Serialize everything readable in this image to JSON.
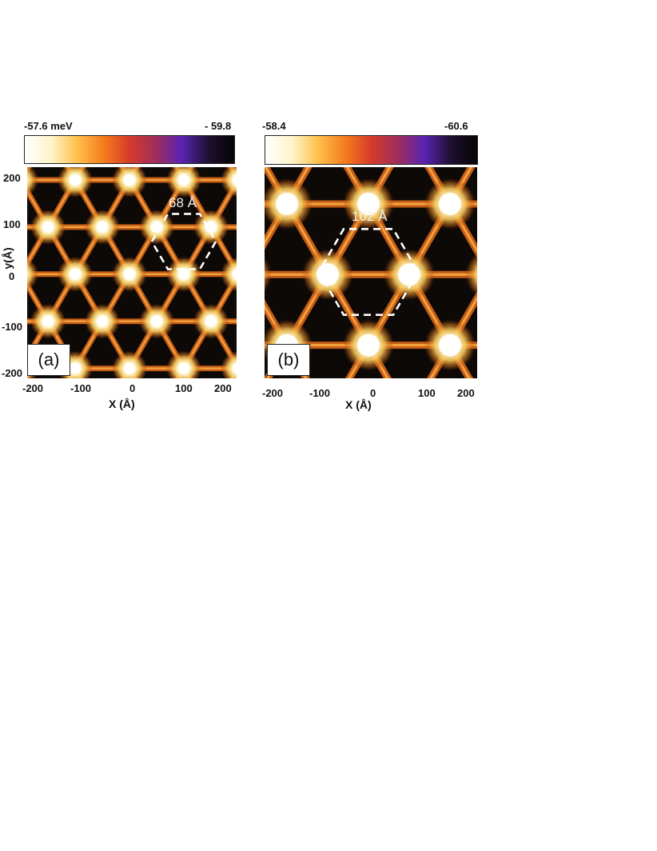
{
  "panels": [
    {
      "tag": "(a)",
      "colorbar": {
        "min_label": "-57.6 meV",
        "max_label": "- 59.8"
      },
      "hex_label": "68 Å",
      "lattice_period": 68,
      "x_ticks": [
        "-200",
        "-100",
        "0",
        "100",
        "200"
      ],
      "y_ticks": [
        "200",
        "100",
        "0",
        "-100",
        "-200"
      ],
      "x_title": "X (Å)",
      "y_title": "y(Å)"
    },
    {
      "tag": "(b)",
      "colorbar": {
        "min_label": "-58.4",
        "max_label": "-60.6"
      },
      "hex_label": "102 Å",
      "lattice_period": 102,
      "x_ticks": [
        "-200",
        "-100",
        "0",
        "100",
        "200"
      ],
      "x_title": "X (Å)"
    }
  ],
  "colormap": [
    "#ffffff",
    "#fff3c8",
    "#ffc04a",
    "#f47a1c",
    "#d63b2a",
    "#9e2d5e",
    "#5a24b4",
    "#1d0f2d",
    "#050505"
  ]
}
